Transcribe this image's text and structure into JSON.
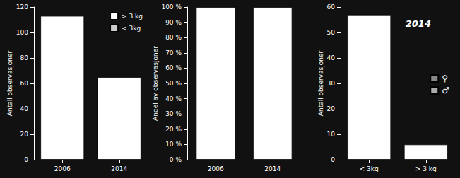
{
  "chart_data": [
    {
      "type": "bar",
      "categories": [
        "2006",
        "2014"
      ],
      "series": [
        {
          "color": "#ffffff",
          "values": [
            113,
            65
          ]
        },
        {
          "name": "> 3 kg",
          "color": "#ffffff",
          "values": [
            null,
            null
          ]
        },
        {
          "name": "< 3kg",
          "color": "#cccccc",
          "values": [
            null,
            null
          ]
        }
      ],
      "ylabel": "Antall observasjoner",
      "ylim": [
        0,
        120
      ],
      "yticks": [
        0,
        20,
        40,
        60,
        80,
        100,
        120
      ],
      "legend": "upper right",
      "grid": false
    },
    {
      "type": "bar",
      "categories": [
        "2006",
        "2014"
      ],
      "values": [
        100,
        100
      ],
      "color": "#ffffff",
      "ylabel": "Andel av observasjoner",
      "ylim": [
        0,
        100
      ],
      "yticks": [
        {
          "value": 0,
          "label": "0 %"
        },
        {
          "value": 10,
          "label": "10 %"
        },
        {
          "value": 20,
          "label": "20 %"
        },
        {
          "value": 30,
          "label": "30 %"
        },
        {
          "value": 40,
          "label": "40 %"
        },
        {
          "value": 50,
          "label": "50 %"
        },
        {
          "value": 60,
          "label": "60 %"
        },
        {
          "value": 70,
          "label": "70 %"
        },
        {
          "value": 80,
          "label": "80 %"
        },
        {
          "value": 90,
          "label": "90 %"
        },
        {
          "value": 100,
          "label": "100 %"
        }
      ],
      "grid": false
    },
    {
      "type": "bar",
      "categories": [
        "< 3kg",
        "> 3 kg"
      ],
      "series": [
        {
          "color": "#ffffff",
          "values": [
            57,
            6
          ]
        },
        {
          "name": "♀",
          "color": "#888888",
          "values": [
            null,
            null
          ]
        },
        {
          "name": "♂",
          "color": "#aaaaaa",
          "values": [
            null,
            null
          ]
        }
      ],
      "ylabel": "Antall observasjoner",
      "ylim": [
        0,
        60
      ],
      "yticks": [
        0,
        10,
        20,
        30,
        40,
        50,
        60
      ],
      "annotation": "2014",
      "legend": "center right",
      "grid": false
    }
  ]
}
